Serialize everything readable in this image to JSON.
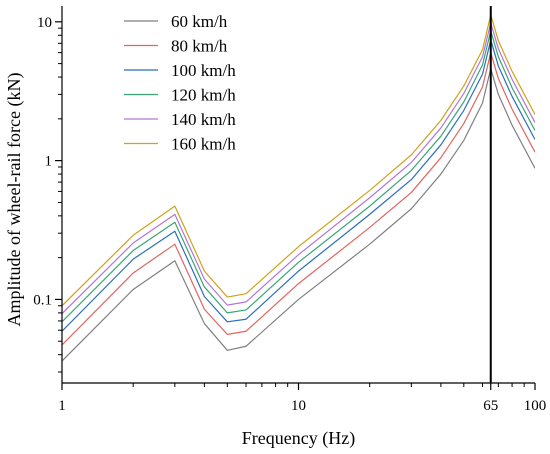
{
  "chart_data": {
    "type": "line",
    "xlabel": "Frequency (Hz)",
    "ylabel": "Amplitude of wheel-rail force (kN)",
    "xscale": "log",
    "yscale": "log",
    "xlim": [
      1,
      100
    ],
    "ylim": [
      0.025,
      13
    ],
    "xticks": [
      {
        "value": 1,
        "label": "1"
      },
      {
        "value": 10,
        "label": "10"
      },
      {
        "value": 65,
        "label": "65"
      },
      {
        "value": 100,
        "label": "100"
      }
    ],
    "yticks": [
      {
        "value": 0.1,
        "label": "0.1"
      },
      {
        "value": 1,
        "label": "1"
      },
      {
        "value": 10,
        "label": "10"
      }
    ],
    "reference_line": {
      "x": 65
    },
    "legend_position": "top-left",
    "grid": false,
    "x": [
      1,
      2,
      3,
      4,
      5,
      6,
      10,
      20,
      30,
      40,
      50,
      60,
      65,
      70,
      80,
      100
    ],
    "series": [
      {
        "name": "60 km/h",
        "color": "#808080",
        "values": [
          0.036,
          0.118,
          0.19,
          0.067,
          0.043,
          0.046,
          0.1,
          0.25,
          0.45,
          0.8,
          1.4,
          2.6,
          4.6,
          3.0,
          1.8,
          0.88
        ]
      },
      {
        "name": "80 km/h",
        "color": "#e06660",
        "values": [
          0.047,
          0.155,
          0.25,
          0.085,
          0.056,
          0.059,
          0.13,
          0.33,
          0.59,
          1.05,
          1.85,
          3.4,
          6.0,
          3.9,
          2.35,
          1.15
        ]
      },
      {
        "name": "100 km/h",
        "color": "#2c6ebe",
        "values": [
          0.059,
          0.195,
          0.31,
          0.105,
          0.069,
          0.072,
          0.16,
          0.41,
          0.73,
          1.3,
          2.3,
          4.2,
          7.4,
          4.8,
          2.9,
          1.42
        ]
      },
      {
        "name": "120 km/h",
        "color": "#3aa674",
        "values": [
          0.069,
          0.225,
          0.36,
          0.123,
          0.08,
          0.084,
          0.185,
          0.47,
          0.85,
          1.5,
          2.65,
          4.9,
          8.6,
          5.6,
          3.35,
          1.65
        ]
      },
      {
        "name": "140 km/h",
        "color": "#b476d6",
        "values": [
          0.079,
          0.255,
          0.41,
          0.14,
          0.091,
          0.096,
          0.21,
          0.54,
          0.97,
          1.72,
          3.05,
          5.6,
          9.8,
          6.4,
          3.85,
          1.88
        ]
      },
      {
        "name": "160 km/h",
        "color": "#cfa21c",
        "values": [
          0.09,
          0.29,
          0.47,
          0.16,
          0.104,
          0.11,
          0.24,
          0.61,
          1.1,
          1.95,
          3.45,
          6.3,
          11.2,
          7.3,
          4.4,
          2.15
        ]
      }
    ]
  }
}
